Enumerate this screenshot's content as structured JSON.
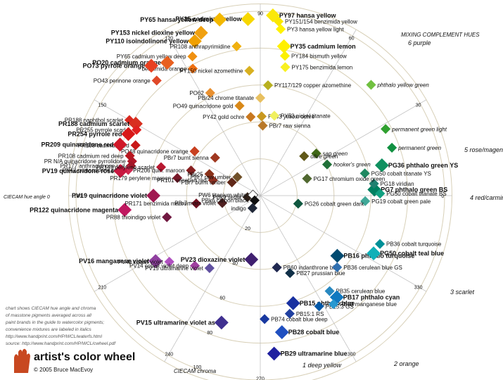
{
  "chart_data": {
    "type": "scatter",
    "title": "artist's color wheel",
    "copyright": "© 2005 Bruce MacEvoy",
    "axis_title_angle": "CIECAM hue angle θ",
    "axis_title_radial": "CIECAM chroma",
    "notes": [
      "chart shows CIECAM hue angle and chroma",
      "of masstone pigments averaged across all",
      "paint brands in the guide to watercolor pigments;",
      "convenience mixtures are labeled in italics",
      "http://www.handprint.com/HP/WCL/waterfs.html",
      "source: http://www.handprint.com/HP/WCL/cwheel.pdf"
    ],
    "complement_title": "MIXING COMPLEMENT HUES",
    "complements": [
      {
        "num": "6",
        "name": "purple"
      },
      {
        "num": "5",
        "name": "rose/magenta"
      },
      {
        "num": "4",
        "name": "red/carmine"
      },
      {
        "num": "3",
        "name": "scarlet"
      },
      {
        "num": "2",
        "name": "orange"
      },
      {
        "num": "1",
        "name": "deep yellow"
      }
    ],
    "angle_ticks": [
      "90",
      "60",
      "30",
      "0",
      "330",
      "300",
      "270",
      "240",
      "210",
      "180",
      "150",
      "120"
    ],
    "chroma_ticks": [
      "20",
      "40",
      "60",
      "80",
      "100"
    ],
    "hue_zero_label": "CIECAM hue angle 0",
    "colors": {
      "ring": "#d8d0b8",
      "axis": "#bbbbbb",
      "complement": "#335577"
    },
    "points": [
      {
        "code": "PY35",
        "name": "cadmium yellow",
        "angle": 94,
        "chroma": 96,
        "color": "#f7d700",
        "bold": true
      },
      {
        "code": "PY65",
        "name": "hansa yellow deep",
        "angle": 103,
        "chroma": 98,
        "color": "#f3b800",
        "bold": true
      },
      {
        "code": "PY97",
        "name": "hansa yellow",
        "angle": 86,
        "chroma": 98,
        "color": "#fbe80a",
        "bold": true
      },
      {
        "code": "PY151/154",
        "name": "benzimida yellow",
        "angle": 84,
        "chroma": 95,
        "color": "#fbe800"
      },
      {
        "code": "PY3",
        "name": "hansa yellow light",
        "angle": 83,
        "chroma": 91,
        "color": "#fff200"
      },
      {
        "code": "PY35",
        "name": "cadmium lemon",
        "angle": 81,
        "chroma": 82,
        "color": "#fff000",
        "bold": true
      },
      {
        "code": "PY184",
        "name": "bismuth yellow",
        "angle": 80,
        "chroma": 77,
        "color": "#fbf000"
      },
      {
        "code": "PY175",
        "name": "benzimida lemon",
        "angle": 79,
        "chroma": 71,
        "color": "#f8f020"
      },
      {
        "code": "PY153",
        "name": "nickel dioxine yellow",
        "angle": 110,
        "chroma": 94,
        "color": "#f0a010",
        "bold": true
      },
      {
        "code": "PY110",
        "name": "isoindolinone yellow",
        "angle": 113,
        "chroma": 91,
        "color": "#f0a000",
        "bold": true
      },
      {
        "code": "PY65",
        "name": "cadmium yellow deep",
        "angle": 116,
        "chroma": 84,
        "color": "#f09010"
      },
      {
        "code": "",
        "name": "benzimida orange",
        "angle": 118,
        "chroma": 78,
        "color": "#f07010"
      },
      {
        "code": "PO20",
        "name": "cadmium orange",
        "angle": 125,
        "chroma": 88,
        "color": "#e86020",
        "bold": true
      },
      {
        "code": "PO73",
        "name": "pyrrole orange",
        "angle": 130,
        "chroma": 92,
        "color": "#e84020",
        "bold": true
      },
      {
        "code": "PO43",
        "name": "perinone orange",
        "angle": 132,
        "chroma": 84,
        "color": "#e04828"
      },
      {
        "code": "PO62",
        "name": "",
        "angle": 116,
        "chroma": 62,
        "color": "#e89030"
      },
      {
        "code": "PO49",
        "name": "quinacridone gold",
        "angle": 103,
        "chroma": 50,
        "color": "#d88818"
      },
      {
        "code": "PY42",
        "name": "gold ochre",
        "angle": 97,
        "chroma": 43,
        "color": "#c87820"
      },
      {
        "code": "PY150",
        "name": "nickel azomethine",
        "angle": 95,
        "chroma": 68,
        "color": "#d8b020"
      },
      {
        "code": "PR108",
        "name": "anthrapyrimidine",
        "angle": 99,
        "chroma": 82,
        "color": "#f0b010"
      },
      {
        "code": "PY117/129",
        "name": "copper azomethine",
        "angle": 86,
        "chroma": 60,
        "color": "#b8b020"
      },
      {
        "code": "PBr24",
        "name": "chrome titanate",
        "angle": 90,
        "chroma": 53,
        "color": "#e8c060"
      },
      {
        "code": "PY43",
        "name": "yellow ochre",
        "angle": 89,
        "chroma": 43,
        "color": "#c89820"
      },
      {
        "code": "PBr7",
        "name": "raw sienna",
        "angle": 88,
        "chroma": 38,
        "color": "#b87828"
      },
      {
        "code": "PY53",
        "name": "nickel titanate",
        "angle": 80,
        "chroma": 44,
        "color": "#f0f060"
      },
      {
        "code": "PO48",
        "name": "quinacridone orange",
        "angle": 146,
        "chroma": 43,
        "color": "#c84020"
      },
      {
        "code": "PBr7",
        "name": "burnt sienna",
        "angle": 140,
        "chroma": 32,
        "color": "#a03820"
      },
      {
        "code": "PR188",
        "name": "naphthol scarlet",
        "angle": 150,
        "chroma": 82,
        "color": "#d82820"
      },
      {
        "code": "PR188",
        "name": "cadmium scarlet",
        "angle": 150,
        "chroma": 78,
        "color": "#d83020",
        "bold": true
      },
      {
        "code": "PR255",
        "name": "pyrrole scarlet",
        "angle": 152,
        "chroma": 76,
        "color": "#e02020"
      },
      {
        "code": "PR254",
        "name": "pyrrole red",
        "angle": 155,
        "chroma": 79,
        "color": "#d81818",
        "bold": true
      },
      {
        "code": "PR108",
        "name": "cadmium red",
        "angle": 158,
        "chroma": 73,
        "color": "#c81818"
      },
      {
        "code": "PR209",
        "name": "quinacridone red",
        "angle": 160,
        "chroma": 81,
        "color": "#d01828",
        "bold": true
      },
      {
        "code": "PR108",
        "name": "cadmium red deep",
        "angle": 163,
        "chroma": 74,
        "color": "#b81820"
      },
      {
        "code": "PR N/A",
        "name": "quinacridone pyrrolidone",
        "angle": 165,
        "chroma": 72,
        "color": "#b01828"
      },
      {
        "code": "PR177",
        "name": "anthraquinone red",
        "angle": 167,
        "chroma": 72,
        "color": "#a01828"
      },
      {
        "code": "PV42",
        "name": "quinacridone pink",
        "angle": 169,
        "chroma": 73,
        "color": "#d02850"
      },
      {
        "code": "PV19",
        "name": "quinacridone rose",
        "angle": 170,
        "chroma": 77,
        "color": "#c81840",
        "bold": true
      },
      {
        "code": "PR149",
        "name": "perylene scarlet",
        "angle": 164,
        "chroma": 56,
        "color": "#b81830"
      },
      {
        "code": "PR206",
        "name": "quin. maroon",
        "angle": 160,
        "chroma": 40,
        "color": "#882020"
      },
      {
        "code": "PR179",
        "name": "perylene maroon",
        "angle": 168,
        "chroma": 46,
        "color": "#781828"
      },
      {
        "code": "PBr25",
        "name": "",
        "angle": 157,
        "chroma": 30,
        "color": "#883018"
      },
      {
        "code": "PR101",
        "name": "venetian red",
        "angle": 162,
        "chroma": 27,
        "color": "#903020"
      },
      {
        "code": "PBr7",
        "name": "raw umber",
        "angle": 141,
        "chroma": 16,
        "color": "#705028"
      },
      {
        "code": "PBr7",
        "name": "burnt umber",
        "angle": 155,
        "chroma": 17,
        "color": "#602818"
      },
      {
        "code": "PV19",
        "name": "quinacridone violet",
        "angle": 180,
        "chroma": 58,
        "color": "#a01850",
        "bold": true
      },
      {
        "code": "PR122",
        "name": "quinacridone magenta",
        "angle": 186,
        "chroma": 74,
        "color": "#c01860",
        "bold": true
      },
      {
        "code": "PR88",
        "name": "thioindigo violet",
        "angle": 193,
        "chroma": 52,
        "color": "#701840"
      },
      {
        "code": "PR171",
        "name": "benzimida maroon",
        "angle": 187,
        "chroma": 35,
        "color": "#701020"
      },
      {
        "code": "PBr7",
        "name": "mars violet",
        "angle": 191,
        "chroma": 21,
        "color": "#502020"
      },
      {
        "code": "PBk9",
        "name": "sepia",
        "angle": 187,
        "chroma": 7,
        "color": "#302018"
      },
      {
        "code": "PW6",
        "name": "titanium white",
        "angle": 175,
        "chroma": 4,
        "color": "#ffffff"
      },
      {
        "code": "PBk6",
        "name": "carbon black",
        "angle": 220,
        "chroma": 4,
        "color": "#101010"
      },
      {
        "code": "",
        "name": "indigo",
        "angle": 238,
        "chroma": 8,
        "color": "#202838"
      },
      {
        "code": "PV16",
        "name": "manganese violet",
        "angle": 212,
        "chroma": 67,
        "color": "#9040a0",
        "bold": true
      },
      {
        "code": "PV49",
        "name": "cobalt violet",
        "angle": 216,
        "chroma": 61,
        "color": "#b050c0"
      },
      {
        "code": "PV14",
        "name": "cobalt violet deep",
        "angle": 227,
        "chroma": 52,
        "color": "#a040a0"
      },
      {
        "code": "PV15",
        "name": "ultramarine violet",
        "angle": 235,
        "chroma": 48,
        "color": "#6050a0"
      },
      {
        "code": "PV23",
        "name": "dioxazine violet",
        "angle": 262,
        "chroma": 35,
        "color": "#402070",
        "bold": true
      },
      {
        "code": "PV15",
        "name": "ultramarine violet as",
        "angle": 253,
        "chroma": 72,
        "color": "#403090",
        "bold": true
      },
      {
        "code": "PB60",
        "name": "indanthrone blue",
        "angle": 283,
        "chroma": 40,
        "color": "#202850"
      },
      {
        "code": "PB27",
        "name": "prussian blue",
        "angle": 291,
        "chroma": 45,
        "color": "#103048"
      },
      {
        "code": "PB15",
        "name": "phthalo blue",
        "angle": 287,
        "chroma": 61,
        "color": "#1830a0",
        "bold": true
      },
      {
        "code": "PB15:1",
        "name": "RS",
        "angle": 284,
        "chroma": 66,
        "color": "#2040a0"
      },
      {
        "code": "PB74",
        "name": "cobalt blue deep",
        "angle": 272,
        "chroma": 67,
        "color": "#1838a0"
      },
      {
        "code": "PB28",
        "name": "cobalt blue",
        "angle": 279,
        "chroma": 75,
        "color": "#2050c0",
        "bold": true
      },
      {
        "code": "PB29",
        "name": "ultramarine blue",
        "angle": 275,
        "chroma": 86,
        "color": "#2020a0",
        "bold": true
      },
      {
        "code": "PB15:3",
        "name": "GS",
        "angle": 298,
        "chroma": 68,
        "color": "#0058a8"
      },
      {
        "code": "PB35",
        "name": "cerulean blue",
        "angle": 306,
        "chroma": 64,
        "color": "#2888c0"
      },
      {
        "code": "PB17",
        "name": "phthalo cyan",
        "angle": 307,
        "chroma": 69,
        "color": "#1078c0",
        "bold": true
      },
      {
        "code": "PB33",
        "name": "manganese blue",
        "angle": 304,
        "chroma": 71,
        "color": "#2898d0"
      },
      {
        "code": "PB16",
        "name": "phthalo turquoise",
        "angle": 322,
        "chroma": 53,
        "color": "#004a70",
        "bold": true
      },
      {
        "code": "PB36",
        "name": "cerulean blue GS",
        "angle": 317,
        "chroma": 57,
        "color": "#3070b0"
      },
      {
        "code": "PG50",
        "name": "cobalt teal blue",
        "angle": 333,
        "chroma": 69,
        "color": "#10b0b8",
        "bold": true
      },
      {
        "code": "PB36",
        "name": "cobalt turquoise",
        "angle": 338,
        "chroma": 70,
        "color": "#009098"
      },
      {
        "code": "PG19",
        "name": "cobalt green pale",
        "angle": 357,
        "chroma": 57,
        "color": "#40a898"
      },
      {
        "code": "PG26",
        "name": "cobalt green dark",
        "angle": 348,
        "chroma": 21,
        "color": "#105840"
      },
      {
        "code": "PG7",
        "name": "phthalo green BS",
        "angle": 3,
        "chroma": 62,
        "color": "#008060",
        "bold": true
      },
      {
        "code": "PG18",
        "name": "viridian",
        "angle": 6,
        "chroma": 62,
        "color": "#208070"
      },
      {
        "code": "PG50",
        "name": "cobalt titanate BS",
        "angle": 1,
        "chroma": 65,
        "color": "#10a080"
      },
      {
        "code": "PG36",
        "name": "phthalo green YS",
        "angle": 14,
        "chroma": 68,
        "color": "#109060",
        "bold": true
      },
      {
        "code": "PG50",
        "name": "cobalt titanate YS",
        "angle": 12,
        "chroma": 58,
        "color": "#208860"
      },
      {
        "code": "PG17",
        "name": "chromium oxide green",
        "angle": 20,
        "chroma": 27,
        "color": "#506830"
      },
      {
        "code": "",
        "name": "hooker's green",
        "angle": 25,
        "chroma": 40,
        "color": "#207038",
        "italic": true
      },
      {
        "code": "",
        "name": "sap green",
        "angle": 37,
        "chroma": 38,
        "color": "#406818",
        "italic": true
      },
      {
        "code": "",
        "name": "olive green",
        "angle": 42,
        "chroma": 32,
        "color": "#605818",
        "italic": true
      },
      {
        "code": "",
        "name": "permanent green",
        "angle": 20,
        "chroma": 76,
        "color": "#109040",
        "italic": true
      },
      {
        "code": "",
        "name": "permanent green light",
        "angle": 28,
        "chroma": 77,
        "color": "#30a030",
        "italic": true
      },
      {
        "code": "",
        "name": "phthalo yellow green",
        "angle": 45,
        "chroma": 85,
        "color": "#70c040",
        "italic": true
      }
    ]
  }
}
